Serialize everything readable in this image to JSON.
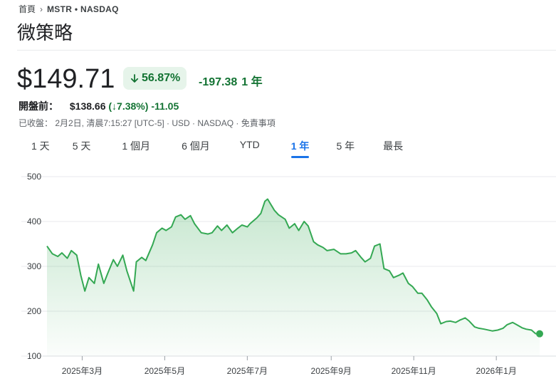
{
  "breadcrumb": {
    "home": "首頁",
    "ticker": "MSTR • NASDAQ"
  },
  "company_name": "微策略",
  "quote": {
    "price": "$149.71",
    "change_pct": "56.87%",
    "change_abs": "-197.38",
    "period": "1 年",
    "premarket_label": "開盤前：",
    "premarket_price": "$138.66",
    "premarket_pct": "(↓7.38%)",
    "premarket_abs": "-11.05",
    "closed_text": "已收盤： 2月2日, 清晨7:15:27 [UTC-5] · USD · NASDAQ · ",
    "disclaimer": "免責事項"
  },
  "tabs": [
    {
      "label": "1 天",
      "active": false
    },
    {
      "label": "5 天",
      "active": false
    },
    {
      "label": "1 個月",
      "active": false
    },
    {
      "label": "6 個月",
      "active": false
    },
    {
      "label": "YTD",
      "active": false
    },
    {
      "label": "1 年",
      "active": true
    },
    {
      "label": "5 年",
      "active": false
    },
    {
      "label": "最長",
      "active": false
    }
  ],
  "colors": {
    "up_green": "#137333",
    "line": "#34a853",
    "accent_blue": "#1a73e8"
  },
  "icons": {
    "arrow": "arrow-down-icon",
    "chevron": "chevron-right-icon"
  },
  "chart_data": {
    "type": "area",
    "ylim": [
      100,
      500
    ],
    "yticks": [
      100,
      200,
      300,
      400,
      500
    ],
    "xtick_labels": [
      "2025年3月",
      "2025年5月",
      "2025年7月",
      "2025年9月",
      "2025年11月",
      "2026年1月"
    ],
    "x_range": [
      "2025-02-03",
      "2026-02-02"
    ],
    "xtick_dates": [
      "2025-03-01",
      "2025-05-01",
      "2025-07-01",
      "2025-09-01",
      "2025-11-01",
      "2026-01-01"
    ],
    "grid": true,
    "series": [
      {
        "points": [
          [
            "2025-02-03",
            345
          ],
          [
            "2025-02-07",
            328
          ],
          [
            "2025-02-11",
            322
          ],
          [
            "2025-02-14",
            330
          ],
          [
            "2025-02-18",
            318
          ],
          [
            "2025-02-21",
            335
          ],
          [
            "2025-02-25",
            325
          ],
          [
            "2025-02-28",
            280
          ],
          [
            "2025-03-03",
            245
          ],
          [
            "2025-03-06",
            275
          ],
          [
            "2025-03-10",
            262
          ],
          [
            "2025-03-13",
            305
          ],
          [
            "2025-03-17",
            262
          ],
          [
            "2025-03-20",
            285
          ],
          [
            "2025-03-24",
            315
          ],
          [
            "2025-03-27",
            300
          ],
          [
            "2025-03-31",
            325
          ],
          [
            "2025-04-03",
            290
          ],
          [
            "2025-04-08",
            245
          ],
          [
            "2025-04-10",
            310
          ],
          [
            "2025-04-14",
            320
          ],
          [
            "2025-04-17",
            313
          ],
          [
            "2025-04-22",
            348
          ],
          [
            "2025-04-25",
            375
          ],
          [
            "2025-04-29",
            385
          ],
          [
            "2025-05-02",
            380
          ],
          [
            "2025-05-06",
            388
          ],
          [
            "2025-05-09",
            410
          ],
          [
            "2025-05-13",
            415
          ],
          [
            "2025-05-16",
            405
          ],
          [
            "2025-05-20",
            413
          ],
          [
            "2025-05-23",
            395
          ],
          [
            "2025-05-28",
            375
          ],
          [
            "2025-06-02",
            372
          ],
          [
            "2025-06-05",
            375
          ],
          [
            "2025-06-09",
            390
          ],
          [
            "2025-06-12",
            380
          ],
          [
            "2025-06-16",
            392
          ],
          [
            "2025-06-20",
            375
          ],
          [
            "2025-06-24",
            385
          ],
          [
            "2025-06-27",
            392
          ],
          [
            "2025-07-01",
            388
          ],
          [
            "2025-07-03",
            395
          ],
          [
            "2025-07-08",
            408
          ],
          [
            "2025-07-11",
            418
          ],
          [
            "2025-07-14",
            445
          ],
          [
            "2025-07-16",
            450
          ],
          [
            "2025-07-21",
            425
          ],
          [
            "2025-07-24",
            415
          ],
          [
            "2025-07-29",
            405
          ],
          [
            "2025-08-01",
            385
          ],
          [
            "2025-08-05",
            395
          ],
          [
            "2025-08-08",
            380
          ],
          [
            "2025-08-12",
            400
          ],
          [
            "2025-08-15",
            390
          ],
          [
            "2025-08-19",
            355
          ],
          [
            "2025-08-22",
            348
          ],
          [
            "2025-08-26",
            342
          ],
          [
            "2025-08-29",
            335
          ],
          [
            "2025-09-03",
            338
          ],
          [
            "2025-09-08",
            328
          ],
          [
            "2025-09-12",
            328
          ],
          [
            "2025-09-16",
            330
          ],
          [
            "2025-09-19",
            335
          ],
          [
            "2025-09-23",
            320
          ],
          [
            "2025-09-26",
            310
          ],
          [
            "2025-09-30",
            318
          ],
          [
            "2025-10-03",
            345
          ],
          [
            "2025-10-07",
            350
          ],
          [
            "2025-10-10",
            295
          ],
          [
            "2025-10-14",
            290
          ],
          [
            "2025-10-17",
            275
          ],
          [
            "2025-10-21",
            280
          ],
          [
            "2025-10-24",
            285
          ],
          [
            "2025-10-28",
            262
          ],
          [
            "2025-10-31",
            255
          ],
          [
            "2025-11-04",
            240
          ],
          [
            "2025-11-07",
            240
          ],
          [
            "2025-11-11",
            225
          ],
          [
            "2025-11-14",
            210
          ],
          [
            "2025-11-18",
            195
          ],
          [
            "2025-11-21",
            172
          ],
          [
            "2025-11-25",
            177
          ],
          [
            "2025-11-28",
            178
          ],
          [
            "2025-12-02",
            175
          ],
          [
            "2025-12-05",
            180
          ],
          [
            "2025-12-09",
            185
          ],
          [
            "2025-12-12",
            178
          ],
          [
            "2025-12-16",
            165
          ],
          [
            "2025-12-19",
            162
          ],
          [
            "2025-12-23",
            160
          ],
          [
            "2025-12-29",
            156
          ],
          [
            "2026-01-02",
            158
          ],
          [
            "2026-01-06",
            162
          ],
          [
            "2026-01-09",
            170
          ],
          [
            "2026-01-13",
            175
          ],
          [
            "2026-01-16",
            170
          ],
          [
            "2026-01-20",
            163
          ],
          [
            "2026-01-23",
            160
          ],
          [
            "2026-01-27",
            158
          ],
          [
            "2026-01-30",
            150
          ],
          [
            "2026-02-02",
            149.71
          ]
        ]
      }
    ]
  }
}
